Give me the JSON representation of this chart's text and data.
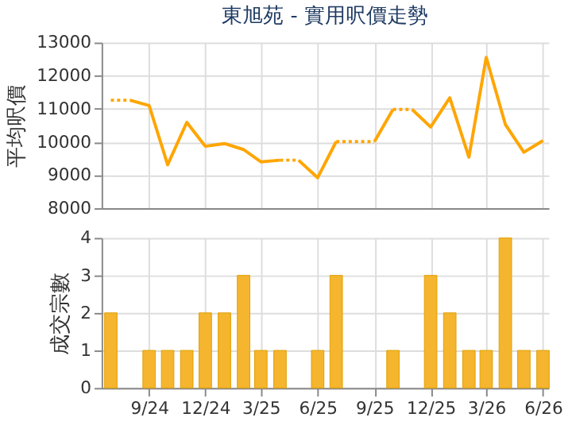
{
  "chart_data": [
    {
      "type": "line",
      "title": "東旭苑 - 實用呎價走勢",
      "ylabel": "平均呎價",
      "xlim": [
        "2024-06-16",
        "2026-06-10"
      ],
      "xticks": [
        {
          "value": "2024-09",
          "label": null
        },
        {
          "value": "2024-12",
          "label": null
        },
        {
          "value": "2025-03",
          "label": null
        },
        {
          "value": "2025-06",
          "label": null
        },
        {
          "value": "2025-09",
          "label": null
        },
        {
          "value": "2025-12",
          "label": null
        },
        {
          "value": "2026-03",
          "label": null
        },
        {
          "value": "2026-06",
          "label": null
        }
      ],
      "ylim": [
        8000,
        13000
      ],
      "yticks": [
        8000,
        9000,
        10000,
        11000,
        12000,
        13000
      ],
      "grid": true,
      "tick_labels": "y",
      "series": [
        {
          "color": "#ffa500",
          "line_style": "dotted",
          "x": [
            "2024-07",
            "2024-08"
          ],
          "values": [
            11260,
            11260
          ]
        },
        {
          "color": "#ffa500",
          "line_style": "solid",
          "x": [
            "2024-08",
            "2024-09",
            "2024-10",
            "2024-11",
            "2024-12",
            "2025-01",
            "2025-02",
            "2025-03",
            "2025-04"
          ],
          "values": [
            11260,
            11100,
            9310,
            10590,
            9870,
            9950,
            9770,
            9400,
            9450
          ]
        },
        {
          "color": "#ffa500",
          "line_style": "dotted",
          "x": [
            "2025-04",
            "2025-05"
          ],
          "values": [
            9450,
            9450
          ]
        },
        {
          "color": "#ffa500",
          "line_style": "solid",
          "x": [
            "2025-05",
            "2025-06",
            "2025-07"
          ],
          "values": [
            9450,
            8920,
            10010
          ]
        },
        {
          "color": "#ffa500",
          "line_style": "dotted",
          "x": [
            "2025-07",
            "2025-08",
            "2025-09"
          ],
          "values": [
            10010,
            10010,
            10010
          ]
        },
        {
          "color": "#ffa500",
          "line_style": "solid",
          "x": [
            "2025-09",
            "2025-10"
          ],
          "values": [
            10010,
            10980
          ]
        },
        {
          "color": "#ffa500",
          "line_style": "dotted",
          "x": [
            "2025-10",
            "2025-11"
          ],
          "values": [
            10980,
            10980
          ]
        },
        {
          "color": "#ffa500",
          "line_style": "solid",
          "x": [
            "2025-11",
            "2025-12",
            "2026-01",
            "2026-02",
            "2026-03",
            "2026-04",
            "2026-05",
            "2026-06"
          ],
          "values": [
            10980,
            10450,
            11330,
            9540,
            12550,
            10530,
            9690,
            10040
          ]
        }
      ]
    },
    {
      "type": "bar",
      "ylabel": "成交宗數",
      "xlim": [
        "2024-06-16",
        "2026-06-10"
      ],
      "xticks": [
        {
          "value": "2024-09",
          "label": "9/24"
        },
        {
          "value": "2024-12",
          "label": "12/24"
        },
        {
          "value": "2025-03",
          "label": "3/25"
        },
        {
          "value": "2025-06",
          "label": "6/25"
        },
        {
          "value": "2025-09",
          "label": "9/25"
        },
        {
          "value": "2025-12",
          "label": "12/25"
        },
        {
          "value": "2026-03",
          "label": "3/26"
        },
        {
          "value": "2026-06",
          "label": "6/26"
        }
      ],
      "ylim": [
        0,
        4
      ],
      "yticks": [
        0,
        1,
        2,
        3,
        4
      ],
      "grid": true,
      "x": [
        "2024-07",
        "2024-09",
        "2024-10",
        "2024-11",
        "2024-12",
        "2025-01",
        "2025-02",
        "2025-03",
        "2025-04",
        "2025-06",
        "2025-07",
        "2025-10",
        "2025-12",
        "2026-01",
        "2026-02",
        "2026-03",
        "2026-04",
        "2026-05",
        "2026-06"
      ],
      "values": [
        2,
        1,
        1,
        1,
        2,
        2,
        3,
        1,
        1,
        1,
        3,
        1,
        3,
        2,
        1,
        1,
        4,
        1,
        1
      ],
      "color": "#f5b52e"
    }
  ]
}
